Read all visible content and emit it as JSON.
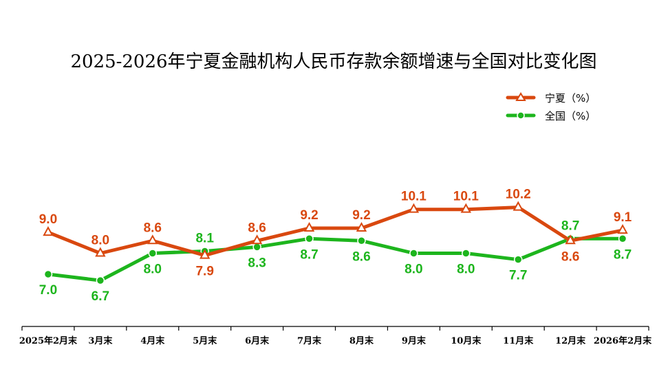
{
  "chart_data": {
    "type": "line",
    "title": "2025-2026年宁夏金融机构人民币存款余额增速与全国对比变化图",
    "categories": [
      "2025年2月末",
      "3月末",
      "4月末",
      "5月末",
      "6月末",
      "7月末",
      "8月末",
      "9月末",
      "10月末",
      "11月末",
      "12月末",
      "2026年2月末"
    ],
    "series": [
      {
        "name": "宁夏（%）",
        "color": "#d9480f",
        "marker": "triangle",
        "values": [
          9.0,
          8.0,
          8.6,
          7.9,
          8.6,
          9.2,
          9.2,
          10.1,
          10.1,
          10.2,
          8.6,
          9.1
        ],
        "labels": [
          "9.0",
          "8.0",
          "8.6",
          "7.9",
          "8.6",
          "9.2",
          "9.2",
          "10.1",
          "10.1",
          "10.2",
          "8.6",
          "9.1"
        ]
      },
      {
        "name": "全国（%）",
        "color": "#1db51d",
        "marker": "circle",
        "values": [
          7.0,
          6.7,
          8.0,
          8.1,
          8.3,
          8.7,
          8.6,
          8.0,
          8.0,
          7.7,
          8.7,
          8.7
        ],
        "labels": [
          "7.0",
          "6.7",
          "8.0",
          "8.1",
          "8.3",
          "8.7",
          "8.6",
          "8.0",
          "8.0",
          "7.7",
          "8.7",
          "8.7"
        ]
      }
    ],
    "legend_position": "top-right",
    "grid": false,
    "ylim": [
      4.5,
      16.5
    ]
  }
}
